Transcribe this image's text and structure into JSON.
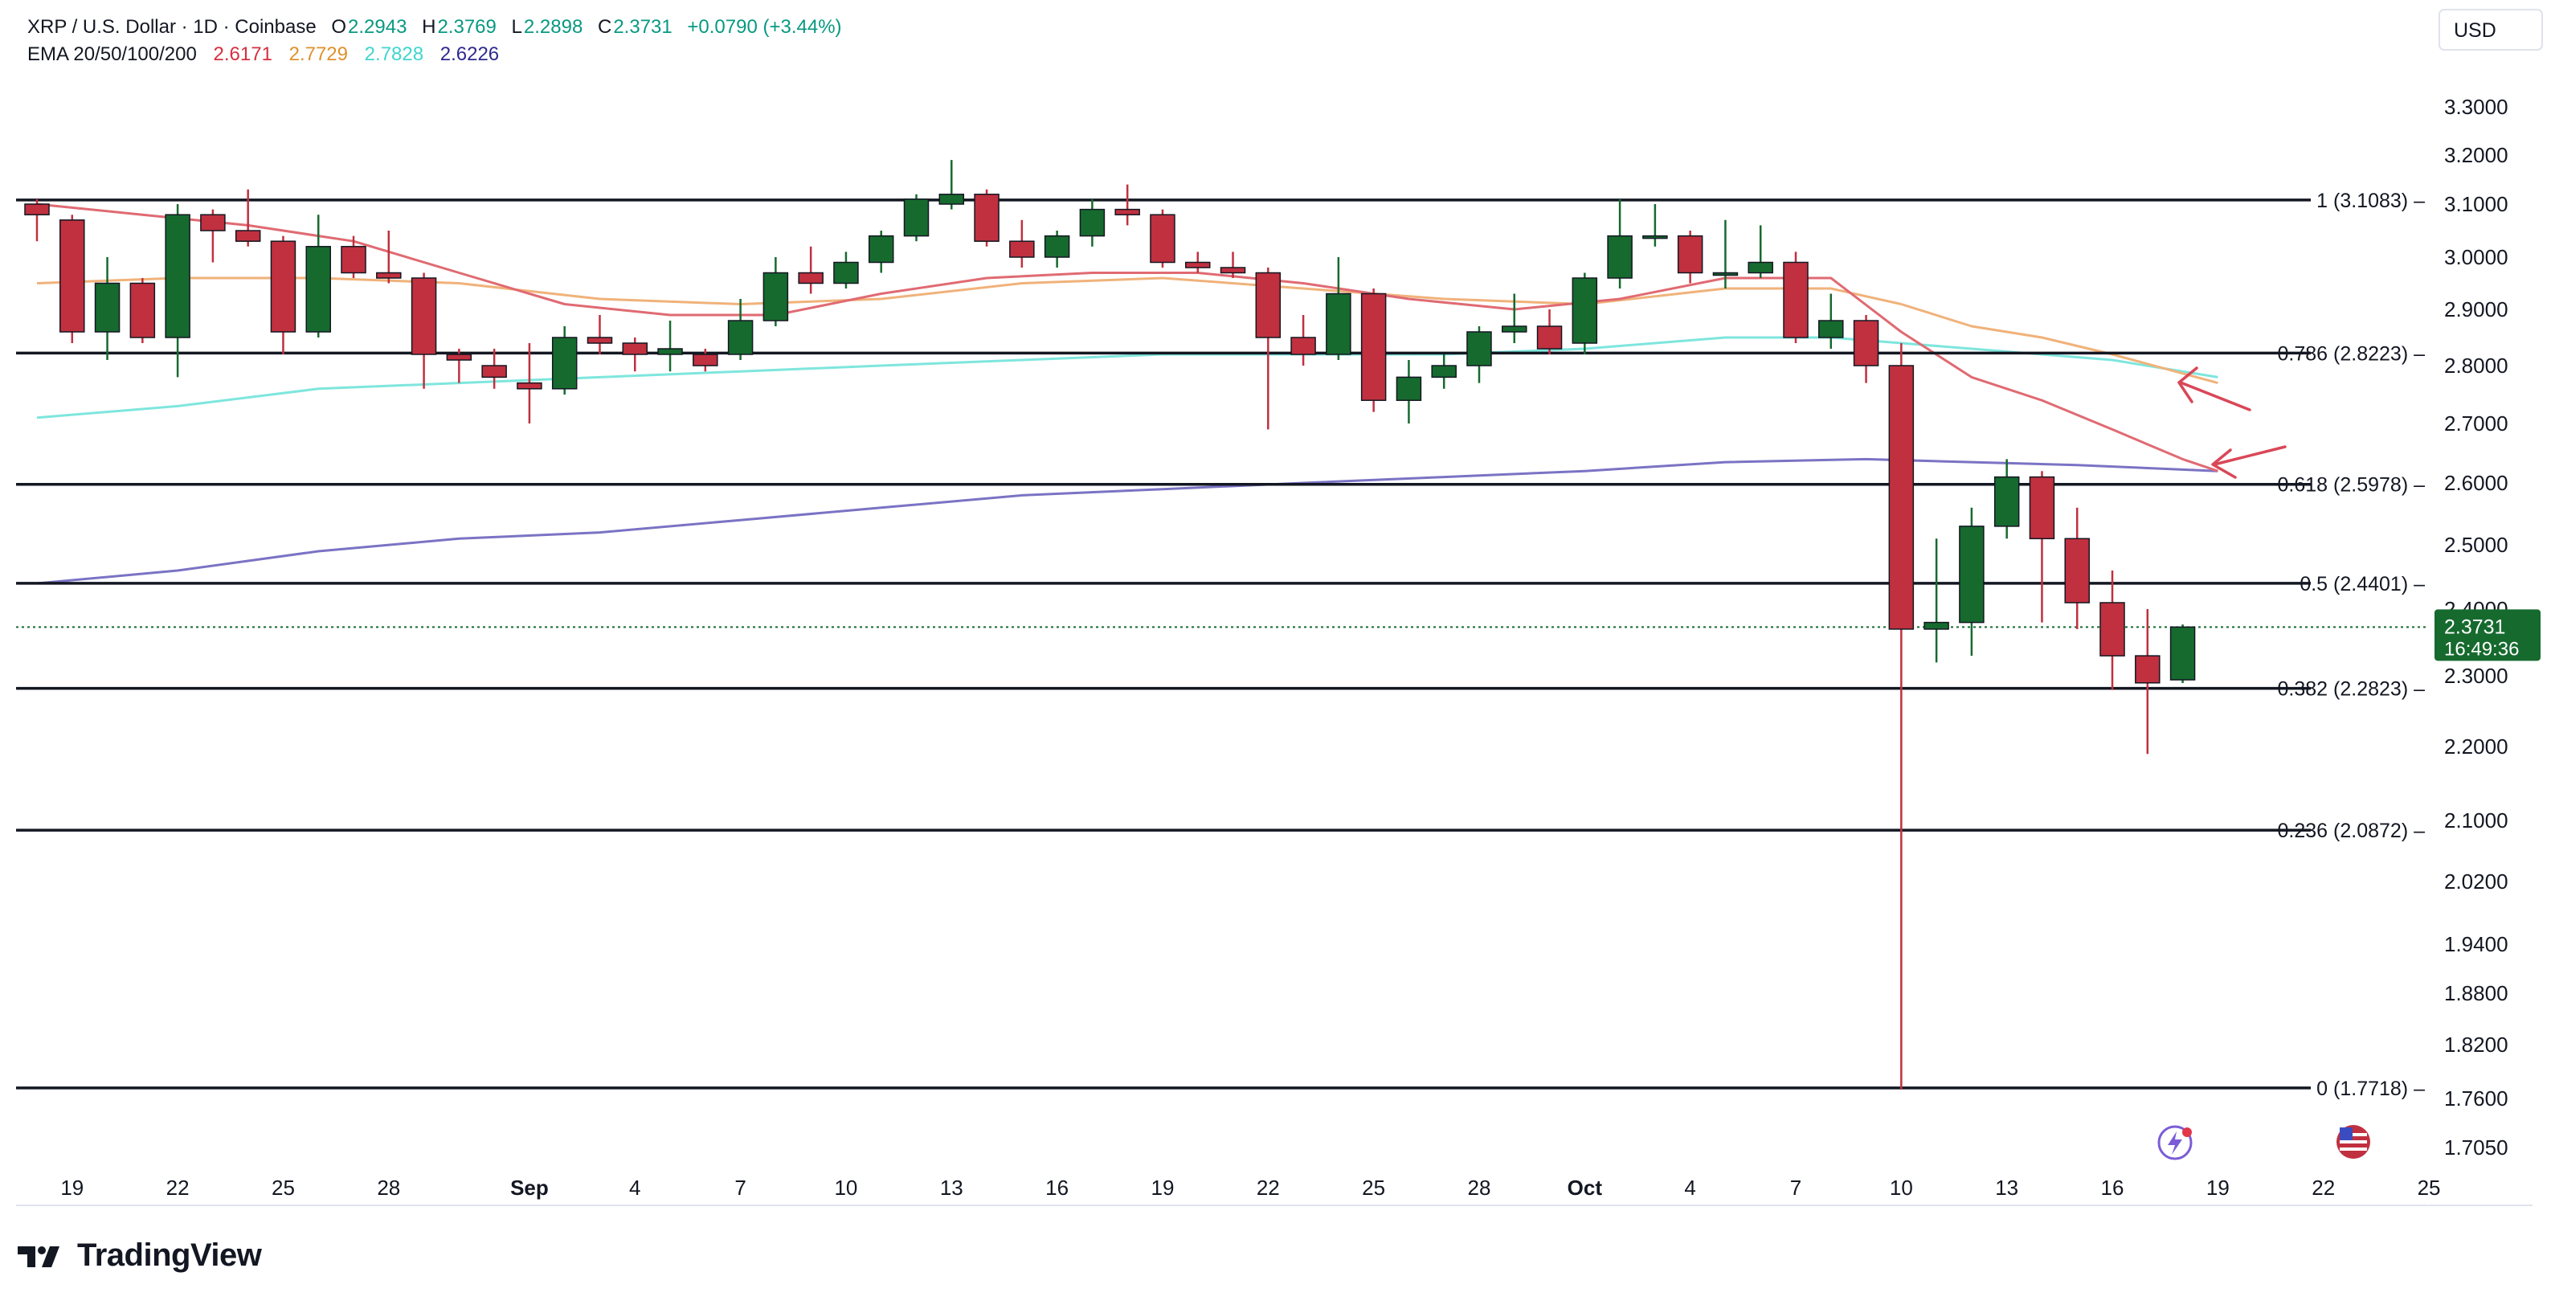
{
  "header": {
    "pair": "XRP / U.S. Dollar · 1D · Coinbase",
    "o_label": "O",
    "o_value": "2.2943",
    "h_label": "H",
    "h_value": "2.3769",
    "l_label": "L",
    "l_value": "2.2898",
    "c_label": "C",
    "c_value": "2.3731",
    "change": "+0.0790 (+3.44%)",
    "ema_label": "EMA 20/50/100/200",
    "ema20": "2.6171",
    "ema50": "2.7729",
    "ema100": "2.7828",
    "ema200": "2.6226"
  },
  "currency": "USD",
  "brand": "TradingView",
  "colors": {
    "up": "#166a2e",
    "down": "#c0303f",
    "wick_up": "#166a2e",
    "wick_down": "#c0303f",
    "ema20": "#e06a72",
    "ema50": "#f0b27a",
    "ema100": "#7ee6dd",
    "ema200": "#7a73c4",
    "fib": "#131722",
    "price_tag": "#166a2e",
    "arrow": "#d94757",
    "header_up": "#089981",
    "ema20_text": "#d5303f",
    "ema50_text": "#e0912c",
    "ema100_text": "#3fd6cc",
    "ema200_text": "#2e2a8f"
  },
  "chart_data": {
    "type": "candlestick",
    "y_ticks": [
      "3.3000",
      "3.2000",
      "3.1000",
      "3.0000",
      "2.9000",
      "2.8000",
      "2.7000",
      "2.6000",
      "2.5000",
      "2.4000",
      "2.3000",
      "2.2000",
      "2.1000",
      "2.0200",
      "1.9400",
      "1.8800",
      "1.8200",
      "1.7600",
      "1.7050"
    ],
    "x_ticks": [
      "19",
      "22",
      "25",
      "28",
      "Sep",
      "4",
      "7",
      "10",
      "13",
      "16",
      "19",
      "22",
      "25",
      "28",
      "Oct",
      "4",
      "7",
      "10",
      "13",
      "16",
      "19",
      "22",
      "25"
    ],
    "current_price": "2.3731",
    "countdown": "16:49:36",
    "fib_levels": [
      {
        "ratio": "1",
        "label": "1 (3.1083)",
        "price": 3.1083
      },
      {
        "ratio": "0.786",
        "label": "0.786 (2.8223)",
        "price": 2.8223
      },
      {
        "ratio": "0.618",
        "label": "0.618 (2.5978)",
        "price": 2.5978
      },
      {
        "ratio": "0.5",
        "label": "0.5 (2.4401)",
        "price": 2.4401
      },
      {
        "ratio": "0.382",
        "label": "0.382 (2.2823)",
        "price": 2.2823
      },
      {
        "ratio": "0.236",
        "label": "0.236 (2.0872)",
        "price": 2.0872
      },
      {
        "ratio": "0",
        "label": "0 (1.7718)",
        "price": 1.7718
      }
    ],
    "candles": [
      {
        "date": "2025-08-18",
        "o": 3.1,
        "h": 3.11,
        "l": 3.03,
        "c": 3.08
      },
      {
        "date": "2025-08-19",
        "o": 3.07,
        "h": 3.08,
        "l": 2.84,
        "c": 2.86
      },
      {
        "date": "2025-08-20",
        "o": 2.86,
        "h": 3.0,
        "l": 2.81,
        "c": 2.95
      },
      {
        "date": "2025-08-21",
        "o": 2.95,
        "h": 2.96,
        "l": 2.84,
        "c": 2.85
      },
      {
        "date": "2025-08-22",
        "o": 2.85,
        "h": 3.1,
        "l": 2.78,
        "c": 3.08
      },
      {
        "date": "2025-08-23",
        "o": 3.08,
        "h": 3.09,
        "l": 2.99,
        "c": 3.05
      },
      {
        "date": "2025-08-24",
        "o": 3.05,
        "h": 3.13,
        "l": 3.02,
        "c": 3.03
      },
      {
        "date": "2025-08-25",
        "o": 3.03,
        "h": 3.04,
        "l": 2.82,
        "c": 2.86
      },
      {
        "date": "2025-08-26",
        "o": 2.86,
        "h": 3.08,
        "l": 2.85,
        "c": 3.02
      },
      {
        "date": "2025-08-27",
        "o": 3.02,
        "h": 3.04,
        "l": 2.96,
        "c": 2.97
      },
      {
        "date": "2025-08-28",
        "o": 2.97,
        "h": 3.05,
        "l": 2.95,
        "c": 2.96
      },
      {
        "date": "2025-08-29",
        "o": 2.96,
        "h": 2.97,
        "l": 2.76,
        "c": 2.82
      },
      {
        "date": "2025-08-30",
        "o": 2.82,
        "h": 2.83,
        "l": 2.77,
        "c": 2.81
      },
      {
        "date": "2025-08-31",
        "o": 2.8,
        "h": 2.83,
        "l": 2.76,
        "c": 2.78
      },
      {
        "date": "2025-09-01",
        "o": 2.77,
        "h": 2.84,
        "l": 2.7,
        "c": 2.76
      },
      {
        "date": "2025-09-02",
        "o": 2.76,
        "h": 2.87,
        "l": 2.75,
        "c": 2.85
      },
      {
        "date": "2025-09-03",
        "o": 2.85,
        "h": 2.89,
        "l": 2.82,
        "c": 2.84
      },
      {
        "date": "2025-09-04",
        "o": 2.84,
        "h": 2.85,
        "l": 2.79,
        "c": 2.82
      },
      {
        "date": "2025-09-05",
        "o": 2.82,
        "h": 2.88,
        "l": 2.79,
        "c": 2.83
      },
      {
        "date": "2025-09-06",
        "o": 2.82,
        "h": 2.83,
        "l": 2.79,
        "c": 2.8
      },
      {
        "date": "2025-09-07",
        "o": 2.82,
        "h": 2.92,
        "l": 2.81,
        "c": 2.88
      },
      {
        "date": "2025-09-08",
        "o": 2.88,
        "h": 3.0,
        "l": 2.87,
        "c": 2.97
      },
      {
        "date": "2025-09-09",
        "o": 2.97,
        "h": 3.02,
        "l": 2.93,
        "c": 2.95
      },
      {
        "date": "2025-09-10",
        "o": 2.95,
        "h": 3.01,
        "l": 2.94,
        "c": 2.99
      },
      {
        "date": "2025-09-11",
        "o": 2.99,
        "h": 3.05,
        "l": 2.97,
        "c": 3.04
      },
      {
        "date": "2025-09-12",
        "o": 3.04,
        "h": 3.12,
        "l": 3.03,
        "c": 3.11
      },
      {
        "date": "2025-09-13",
        "o": 3.1,
        "h": 3.19,
        "l": 3.09,
        "c": 3.12
      },
      {
        "date": "2025-09-14",
        "o": 3.12,
        "h": 3.13,
        "l": 3.02,
        "c": 3.03
      },
      {
        "date": "2025-09-15",
        "o": 3.03,
        "h": 3.07,
        "l": 2.98,
        "c": 3.0
      },
      {
        "date": "2025-09-16",
        "o": 3.0,
        "h": 3.05,
        "l": 2.98,
        "c": 3.04
      },
      {
        "date": "2025-09-17",
        "o": 3.04,
        "h": 3.11,
        "l": 3.02,
        "c": 3.09
      },
      {
        "date": "2025-09-18",
        "o": 3.09,
        "h": 3.14,
        "l": 3.06,
        "c": 3.08
      },
      {
        "date": "2025-09-19",
        "o": 3.08,
        "h": 3.09,
        "l": 2.98,
        "c": 2.99
      },
      {
        "date": "2025-09-20",
        "o": 2.99,
        "h": 3.01,
        "l": 2.97,
        "c": 2.98
      },
      {
        "date": "2025-09-21",
        "o": 2.98,
        "h": 3.01,
        "l": 2.96,
        "c": 2.97
      },
      {
        "date": "2025-09-22",
        "o": 2.97,
        "h": 2.98,
        "l": 2.69,
        "c": 2.85
      },
      {
        "date": "2025-09-23",
        "o": 2.85,
        "h": 2.89,
        "l": 2.8,
        "c": 2.82
      },
      {
        "date": "2025-09-24",
        "o": 2.82,
        "h": 3.0,
        "l": 2.81,
        "c": 2.93
      },
      {
        "date": "2025-09-25",
        "o": 2.93,
        "h": 2.94,
        "l": 2.72,
        "c": 2.74
      },
      {
        "date": "2025-09-26",
        "o": 2.74,
        "h": 2.81,
        "l": 2.7,
        "c": 2.78
      },
      {
        "date": "2025-09-27",
        "o": 2.78,
        "h": 2.82,
        "l": 2.76,
        "c": 2.8
      },
      {
        "date": "2025-09-28",
        "o": 2.8,
        "h": 2.87,
        "l": 2.77,
        "c": 2.86
      },
      {
        "date": "2025-09-29",
        "o": 2.86,
        "h": 2.93,
        "l": 2.84,
        "c": 2.87
      },
      {
        "date": "2025-09-30",
        "o": 2.87,
        "h": 2.9,
        "l": 2.82,
        "c": 2.83
      },
      {
        "date": "2025-10-01",
        "o": 2.84,
        "h": 2.97,
        "l": 2.82,
        "c": 2.96
      },
      {
        "date": "2025-10-02",
        "o": 2.96,
        "h": 3.11,
        "l": 2.94,
        "c": 3.04
      },
      {
        "date": "2025-10-03",
        "o": 3.04,
        "h": 3.1,
        "l": 3.02,
        "c": 3.04
      },
      {
        "date": "2025-10-04",
        "o": 3.04,
        "h": 3.05,
        "l": 2.95,
        "c": 2.97
      },
      {
        "date": "2025-10-05",
        "o": 2.97,
        "h": 3.07,
        "l": 2.94,
        "c": 2.97
      },
      {
        "date": "2025-10-06",
        "o": 2.97,
        "h": 3.06,
        "l": 2.96,
        "c": 2.99
      },
      {
        "date": "2025-10-07",
        "o": 2.99,
        "h": 3.01,
        "l": 2.84,
        "c": 2.85
      },
      {
        "date": "2025-10-08",
        "o": 2.85,
        "h": 2.93,
        "l": 2.83,
        "c": 2.88
      },
      {
        "date": "2025-10-09",
        "o": 2.88,
        "h": 2.89,
        "l": 2.77,
        "c": 2.8
      },
      {
        "date": "2025-10-10",
        "o": 2.8,
        "h": 2.84,
        "l": 1.77,
        "c": 2.37
      },
      {
        "date": "2025-10-11",
        "o": 2.37,
        "h": 2.51,
        "l": 2.32,
        "c": 2.38
      },
      {
        "date": "2025-10-12",
        "o": 2.38,
        "h": 2.56,
        "l": 2.33,
        "c": 2.53
      },
      {
        "date": "2025-10-13",
        "o": 2.53,
        "h": 2.64,
        "l": 2.51,
        "c": 2.61
      },
      {
        "date": "2025-10-14",
        "o": 2.61,
        "h": 2.62,
        "l": 2.38,
        "c": 2.51
      },
      {
        "date": "2025-10-15",
        "o": 2.51,
        "h": 2.56,
        "l": 2.37,
        "c": 2.41
      },
      {
        "date": "2025-10-16",
        "o": 2.41,
        "h": 2.46,
        "l": 2.28,
        "c": 2.33
      },
      {
        "date": "2025-10-17",
        "o": 2.33,
        "h": 2.4,
        "l": 2.19,
        "c": 2.29
      },
      {
        "date": "2025-10-18",
        "o": 2.2943,
        "h": 2.3769,
        "l": 2.2898,
        "c": 2.3731
      }
    ],
    "ema20": [
      [
        0,
        3.1
      ],
      [
        3,
        3.08
      ],
      [
        6,
        3.06
      ],
      [
        9,
        3.03
      ],
      [
        12,
        2.97
      ],
      [
        15,
        2.91
      ],
      [
        18,
        2.89
      ],
      [
        21,
        2.89
      ],
      [
        24,
        2.93
      ],
      [
        27,
        2.96
      ],
      [
        30,
        2.97
      ],
      [
        33,
        2.97
      ],
      [
        36,
        2.95
      ],
      [
        39,
        2.92
      ],
      [
        42,
        2.9
      ],
      [
        45,
        2.92
      ],
      [
        48,
        2.96
      ],
      [
        51,
        2.96
      ],
      [
        53,
        2.86
      ],
      [
        55,
        2.78
      ],
      [
        57,
        2.74
      ],
      [
        59,
        2.69
      ],
      [
        61,
        2.64
      ],
      [
        62,
        2.62
      ]
    ],
    "ema50": [
      [
        0,
        2.95
      ],
      [
        4,
        2.96
      ],
      [
        8,
        2.96
      ],
      [
        12,
        2.95
      ],
      [
        16,
        2.92
      ],
      [
        20,
        2.91
      ],
      [
        24,
        2.92
      ],
      [
        28,
        2.95
      ],
      [
        32,
        2.96
      ],
      [
        36,
        2.94
      ],
      [
        40,
        2.92
      ],
      [
        44,
        2.91
      ],
      [
        48,
        2.94
      ],
      [
        51,
        2.94
      ],
      [
        53,
        2.91
      ],
      [
        55,
        2.87
      ],
      [
        57,
        2.85
      ],
      [
        59,
        2.82
      ],
      [
        62,
        2.77
      ]
    ],
    "ema100": [
      [
        0,
        2.71
      ],
      [
        4,
        2.73
      ],
      [
        8,
        2.76
      ],
      [
        12,
        2.77
      ],
      [
        16,
        2.78
      ],
      [
        20,
        2.79
      ],
      [
        24,
        2.8
      ],
      [
        28,
        2.81
      ],
      [
        32,
        2.82
      ],
      [
        36,
        2.82
      ],
      [
        40,
        2.82
      ],
      [
        44,
        2.83
      ],
      [
        48,
        2.85
      ],
      [
        51,
        2.85
      ],
      [
        53,
        2.84
      ],
      [
        55,
        2.83
      ],
      [
        57,
        2.82
      ],
      [
        59,
        2.81
      ],
      [
        62,
        2.78
      ]
    ],
    "ema200": [
      [
        0,
        2.44
      ],
      [
        4,
        2.46
      ],
      [
        8,
        2.49
      ],
      [
        12,
        2.51
      ],
      [
        16,
        2.52
      ],
      [
        20,
        2.54
      ],
      [
        24,
        2.56
      ],
      [
        28,
        2.58
      ],
      [
        32,
        2.59
      ],
      [
        36,
        2.6
      ],
      [
        40,
        2.61
      ],
      [
        44,
        2.62
      ],
      [
        48,
        2.635
      ],
      [
        52,
        2.64
      ],
      [
        55,
        2.635
      ],
      [
        58,
        2.63
      ],
      [
        62,
        2.62
      ]
    ],
    "ylim": [
      1.7,
      3.36
    ]
  }
}
